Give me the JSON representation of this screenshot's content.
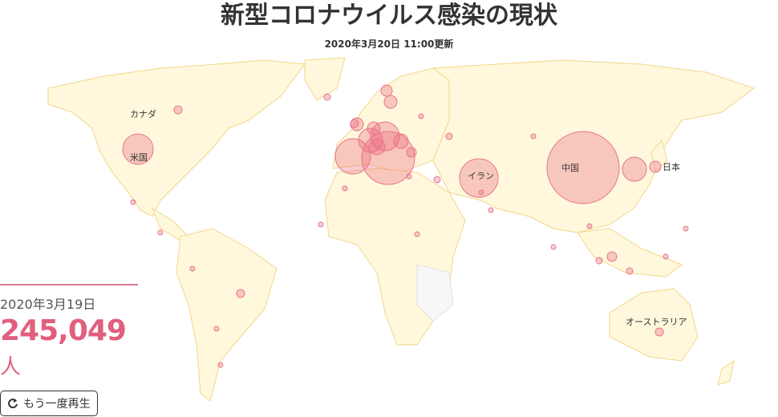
{
  "title": "新型コロナウイルス感染の現状",
  "updated": "2020年3月20日 11:00更新",
  "map_labels": {
    "canada": "カナダ",
    "usa": "米国",
    "iran": "イラン",
    "china": "中国",
    "japan": "日本",
    "australia": "オーストラリア"
  },
  "panel": {
    "date": "2020年3月19日",
    "count": "245,049",
    "unit": "人",
    "replay_label": "もう一度再生",
    "replay_icon": "redo-icon"
  },
  "colors": {
    "bubble": "#e8758a",
    "land": "#fff8dc",
    "border": "#f2d68a",
    "count": "#e0607e"
  }
}
